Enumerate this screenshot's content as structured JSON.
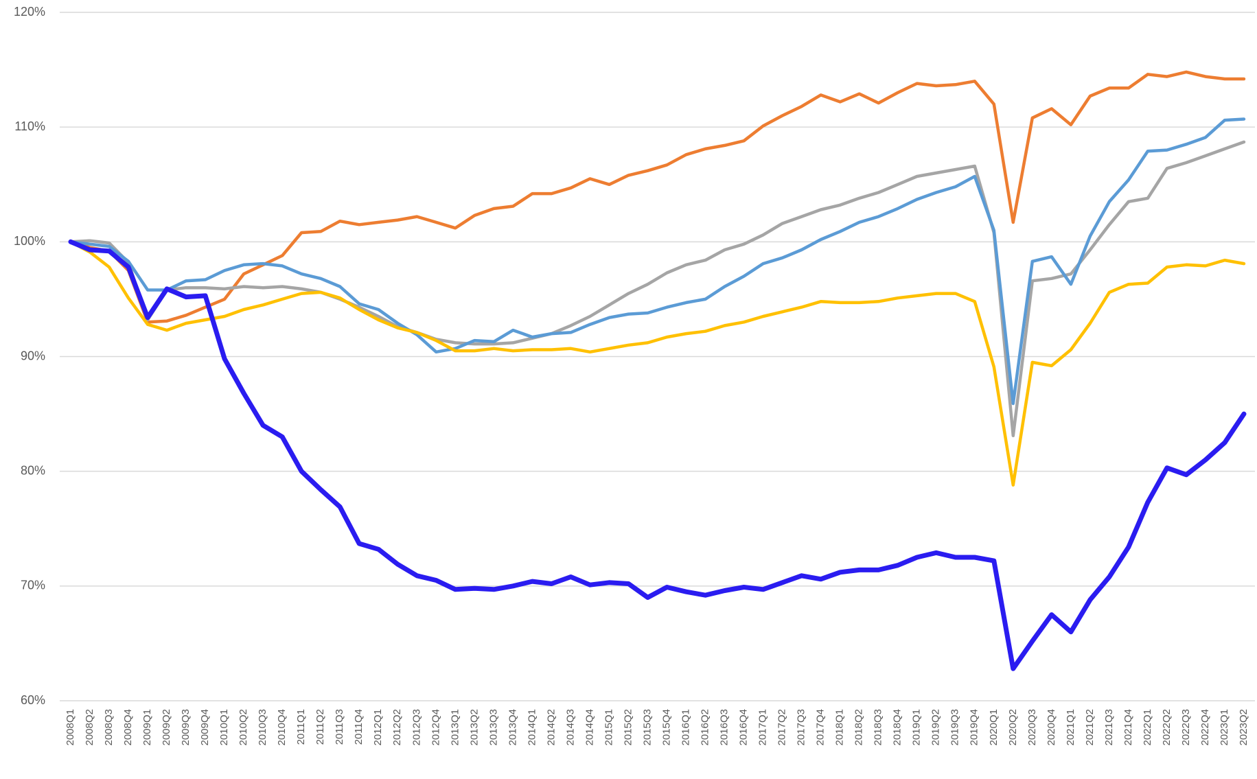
{
  "chart_data": {
    "type": "line",
    "categories": [
      "2008Q1",
      "2008Q2",
      "2008Q3",
      "2008Q4",
      "2009Q1",
      "2009Q2",
      "2009Q3",
      "2009Q4",
      "2010Q1",
      "2010Q2",
      "2010Q3",
      "2010Q4",
      "2011Q1",
      "2011Q2",
      "2011Q3",
      "2011Q4",
      "2012Q1",
      "2012Q2",
      "2012Q3",
      "2012Q4",
      "2013Q1",
      "2013Q2",
      "2013Q3",
      "2013Q4",
      "2014Q1",
      "2014Q2",
      "2014Q3",
      "2014Q4",
      "2015Q1",
      "2015Q2",
      "2015Q3",
      "2015Q4",
      "2016Q1",
      "2016Q2",
      "2016Q3",
      "2016Q4",
      "2017Q1",
      "2017Q2",
      "2017Q3",
      "2017Q4",
      "2018Q1",
      "2018Q2",
      "2018Q3",
      "2018Q4",
      "2019Q1",
      "2019Q2",
      "2019Q3",
      "2019Q4",
      "2020Q1",
      "2020Q2",
      "2020Q3",
      "2020Q4",
      "2021Q1",
      "2021Q2",
      "2021Q3",
      "2021Q4",
      "2022Q1",
      "2022Q2",
      "2022Q3",
      "2022Q4",
      "2023Q1",
      "2023Q2"
    ],
    "series": [
      {
        "color": "#ed7d31",
        "values": [
          100,
          99.5,
          99.2,
          97.5,
          93.0,
          93.1,
          93.6,
          94.3,
          95.0,
          97.2,
          98.0,
          98.8,
          100.8,
          100.9,
          101.8,
          101.5,
          101.7,
          101.9,
          102.2,
          101.7,
          101.2,
          102.3,
          102.9,
          103.1,
          104.2,
          104.2,
          104.7,
          105.5,
          105.0,
          105.8,
          106.2,
          106.7,
          107.6,
          108.1,
          108.4,
          108.8,
          110.1,
          111.0,
          111.8,
          112.8,
          112.2,
          112.9,
          112.1,
          113.0,
          113.8,
          113.6,
          113.7,
          114.0,
          112.0,
          101.7,
          110.8,
          111.6,
          110.2,
          112.7,
          113.4,
          113.4,
          114.6,
          114.4,
          114.8,
          114.4,
          114.2,
          114.2
        ]
      },
      {
        "color": "#a5a5a5",
        "values": [
          100,
          100.1,
          99.9,
          98.2,
          93.2,
          95.8,
          96.0,
          96.0,
          95.9,
          96.1,
          96.0,
          96.1,
          95.9,
          95.6,
          95.0,
          94.3,
          93.5,
          92.6,
          92.1,
          91.5,
          91.2,
          91.1,
          91.1,
          91.2,
          91.6,
          92.0,
          92.7,
          93.5,
          94.5,
          95.5,
          96.3,
          97.3,
          98.0,
          98.4,
          99.3,
          99.8,
          100.6,
          101.6,
          102.2,
          102.8,
          103.2,
          103.8,
          104.3,
          105.0,
          105.7,
          106.0,
          106.3,
          106.6,
          100.8,
          83.1,
          96.6,
          96.8,
          97.2,
          99.3,
          101.5,
          103.5,
          103.8,
          106.4,
          106.9,
          107.5,
          108.1,
          108.7
        ]
      },
      {
        "color": "#5b9bd5",
        "values": [
          100,
          99.8,
          99.6,
          98.3,
          95.8,
          95.8,
          96.6,
          96.7,
          97.5,
          98.0,
          98.1,
          97.9,
          97.2,
          96.8,
          96.1,
          94.6,
          94.1,
          92.9,
          91.9,
          90.4,
          90.7,
          91.4,
          91.3,
          92.3,
          91.7,
          92.0,
          92.1,
          92.8,
          93.4,
          93.7,
          93.8,
          94.3,
          94.7,
          95.0,
          96.1,
          97.0,
          98.1,
          98.6,
          99.3,
          100.2,
          100.9,
          101.7,
          102.2,
          102.9,
          103.7,
          104.3,
          104.8,
          105.7,
          101.0,
          85.9,
          98.3,
          98.7,
          96.3,
          100.5,
          103.5,
          105.4,
          107.9,
          108.0,
          108.5,
          109.1,
          110.6,
          110.7
        ]
      },
      {
        "color": "#ffc000",
        "values": [
          100,
          99.1,
          97.8,
          95.1,
          92.8,
          92.3,
          92.9,
          93.2,
          93.5,
          94.1,
          94.5,
          95.0,
          95.5,
          95.6,
          95.1,
          94.1,
          93.2,
          92.5,
          92.1,
          91.4,
          90.5,
          90.5,
          90.7,
          90.5,
          90.6,
          90.6,
          90.7,
          90.4,
          90.7,
          91.0,
          91.2,
          91.7,
          92.0,
          92.2,
          92.7,
          93.0,
          93.5,
          93.9,
          94.3,
          94.8,
          94.7,
          94.7,
          94.8,
          95.1,
          95.3,
          95.5,
          95.5,
          94.8,
          89.1,
          78.8,
          89.5,
          89.2,
          90.6,
          92.9,
          95.6,
          96.3,
          96.4,
          97.8,
          98.0,
          97.9,
          98.4,
          98.1
        ]
      },
      {
        "color": "#2a1cf0",
        "values": [
          100,
          99.3,
          99.2,
          97.8,
          93.4,
          95.9,
          95.2,
          95.3,
          89.8,
          86.8,
          84.0,
          83.0,
          80.0,
          78.4,
          76.9,
          73.7,
          73.2,
          71.9,
          70.9,
          70.5,
          69.7,
          69.8,
          69.7,
          70.0,
          70.4,
          70.2,
          70.8,
          70.1,
          70.3,
          70.2,
          69.0,
          69.9,
          69.5,
          69.2,
          69.6,
          69.9,
          69.7,
          70.3,
          70.9,
          70.6,
          71.2,
          71.4,
          71.4,
          71.8,
          72.5,
          72.9,
          72.5,
          72.5,
          72.2,
          62.8,
          65.2,
          67.5,
          66.0,
          68.8,
          70.8,
          73.4,
          77.3,
          80.3,
          79.7,
          81.0,
          82.5,
          85.0
        ]
      }
    ],
    "ylim": [
      60,
      120
    ],
    "yticks": [
      {
        "value": 60,
        "label": "60%"
      },
      {
        "value": 70,
        "label": "70%"
      },
      {
        "value": 80,
        "label": "80%"
      },
      {
        "value": 90,
        "label": "90%"
      },
      {
        "value": 100,
        "label": "100%"
      },
      {
        "value": 110,
        "label": "110%"
      },
      {
        "value": 120,
        "label": "120%"
      }
    ],
    "grid": true
  }
}
